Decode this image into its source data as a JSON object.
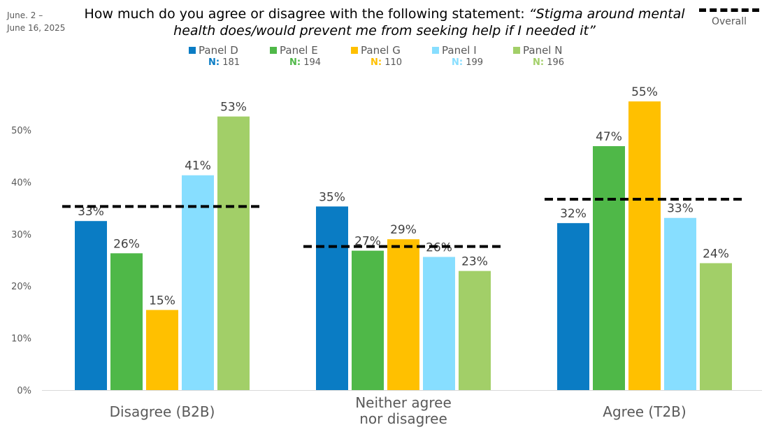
{
  "date": [
    "June. 2 –",
    "June 16, 2025"
  ],
  "title_plain": "How much do you agree or disagree with the following statement: ",
  "title_italic": "“Stigma around mental health does/would prevent me from seeking help if I needed it”",
  "overall_label": "Overall",
  "legend": [
    {
      "name": "Panel D",
      "n_label": "N:",
      "n": "181",
      "color": "#0A7CC4"
    },
    {
      "name": "Panel E",
      "n_label": "N:",
      "n": "194",
      "color": "#4FB848"
    },
    {
      "name": "Panel G",
      "n_label": "N:",
      "n": "110",
      "color": "#FFC000"
    },
    {
      "name": "Panel I",
      "n_label": "N:",
      "n": "199",
      "color": "#87DEFF"
    },
    {
      "name": "Panel N",
      "n_label": "N:",
      "n": "196",
      "color": "#A2CF68"
    }
  ],
  "chart_data": {
    "type": "bar",
    "title": "How much do you agree or disagree with the following statement: “Stigma around mental health does/would prevent me from seeking help if I needed it”",
    "categories": [
      [
        "Disagree (B2B)"
      ],
      [
        "Neither agree",
        "nor disagree"
      ],
      [
        "Agree (T2B)"
      ]
    ],
    "series": [
      {
        "name": "Panel D",
        "values": [
          32.5,
          35.3,
          32.1
        ],
        "labels": [
          "33%",
          "35%",
          "32%"
        ]
      },
      {
        "name": "Panel E",
        "values": [
          26.3,
          26.8,
          46.9
        ],
        "labels": [
          "26%",
          "27%",
          "47%"
        ]
      },
      {
        "name": "Panel G",
        "values": [
          15.4,
          29.0,
          55.5
        ],
        "labels": [
          "15%",
          "29%",
          "55%"
        ]
      },
      {
        "name": "Panel I",
        "values": [
          41.3,
          25.6,
          33.1
        ],
        "labels": [
          "41%",
          "26%",
          "33%"
        ]
      },
      {
        "name": "Panel N",
        "values": [
          52.6,
          22.9,
          24.4
        ],
        "labels": [
          "53%",
          "23%",
          "24%"
        ]
      }
    ],
    "overall": [
      35.3,
      27.6,
      36.7
    ],
    "yticks": [
      "0%",
      "10%",
      "20%",
      "30%",
      "40%",
      "50%"
    ],
    "ylim": [
      0,
      60
    ],
    "legend_position": "top",
    "grid": false
  }
}
